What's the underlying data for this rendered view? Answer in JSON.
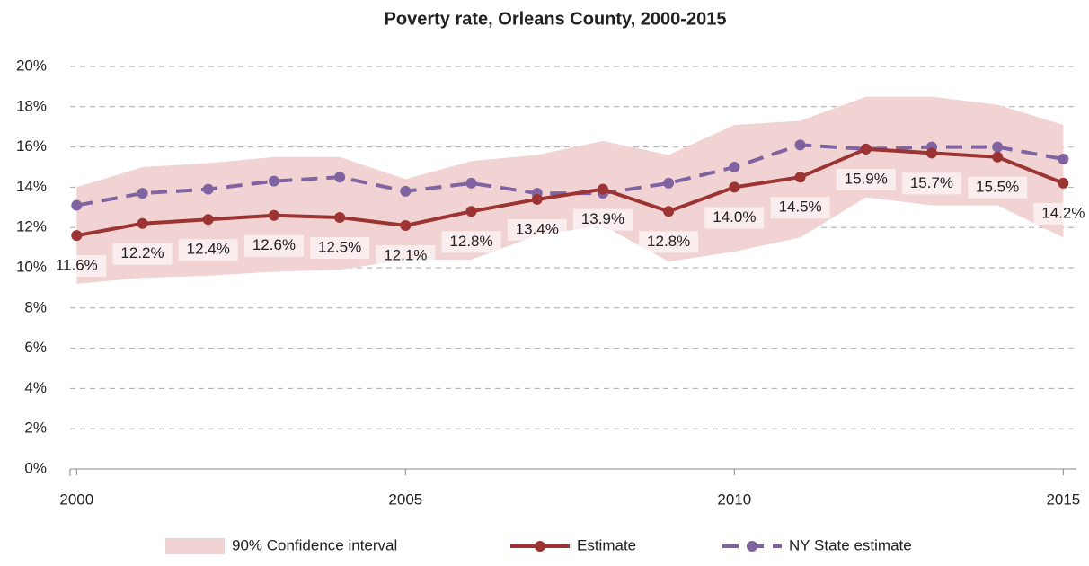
{
  "chart_data": {
    "type": "line",
    "title": "Poverty rate, Orleans County, 2000-2015",
    "x": [
      2000,
      2001,
      2002,
      2003,
      2004,
      2005,
      2006,
      2007,
      2008,
      2009,
      2010,
      2011,
      2012,
      2013,
      2014,
      2015
    ],
    "xlim": [
      1999.9,
      2015.2
    ],
    "xticks": [
      2000,
      2005,
      2010,
      2015
    ],
    "ylim": [
      0,
      20
    ],
    "yticks": [
      {
        "value": 0,
        "label": "0%"
      },
      {
        "value": 2,
        "label": "2%"
      },
      {
        "value": 4,
        "label": "4%"
      },
      {
        "value": 6,
        "label": "6%"
      },
      {
        "value": 8,
        "label": "8%"
      },
      {
        "value": 10,
        "label": "10%"
      },
      {
        "value": 12,
        "label": "12%"
      },
      {
        "value": 14,
        "label": "14%"
      },
      {
        "value": 16,
        "label": "16%"
      },
      {
        "value": 18,
        "label": "18%"
      },
      {
        "value": 20,
        "label": "20%"
      }
    ],
    "grid": true,
    "legend": "bottom",
    "band": {
      "name": "90% Confidence interval",
      "color": "#f2d3d3",
      "lower": [
        9.2,
        9.5,
        9.6,
        9.8,
        9.9,
        10.4,
        10.4,
        11.6,
        12.1,
        10.3,
        10.8,
        11.5,
        13.5,
        13.1,
        13.1,
        11.5
      ],
      "upper": [
        14.0,
        15.0,
        15.2,
        15.5,
        15.5,
        14.4,
        15.3,
        15.6,
        16.3,
        15.6,
        17.1,
        17.3,
        18.5,
        18.5,
        18.1,
        17.1
      ]
    },
    "series": [
      {
        "name": "Estimate",
        "color": "#9b3433",
        "dashed": false,
        "values": [
          11.6,
          12.2,
          12.4,
          12.6,
          12.5,
          12.1,
          12.8,
          13.4,
          13.9,
          12.8,
          14.0,
          14.5,
          15.9,
          15.7,
          15.5,
          14.2
        ],
        "value_labels": [
          "11.6%",
          "12.2%",
          "12.4%",
          "12.6%",
          "12.5%",
          "12.1%",
          "12.8%",
          "13.4%",
          "13.9%",
          "12.8%",
          "14.0%",
          "14.5%",
          "15.9%",
          "15.7%",
          "15.5%",
          "14.2%"
        ]
      },
      {
        "name": "NY State estimate",
        "color": "#8064a2",
        "dashed": true,
        "values": [
          13.1,
          13.7,
          13.9,
          14.3,
          14.5,
          13.8,
          14.2,
          13.7,
          13.7,
          14.2,
          15.0,
          16.1,
          15.9,
          16.0,
          16.0,
          15.4
        ]
      }
    ]
  }
}
